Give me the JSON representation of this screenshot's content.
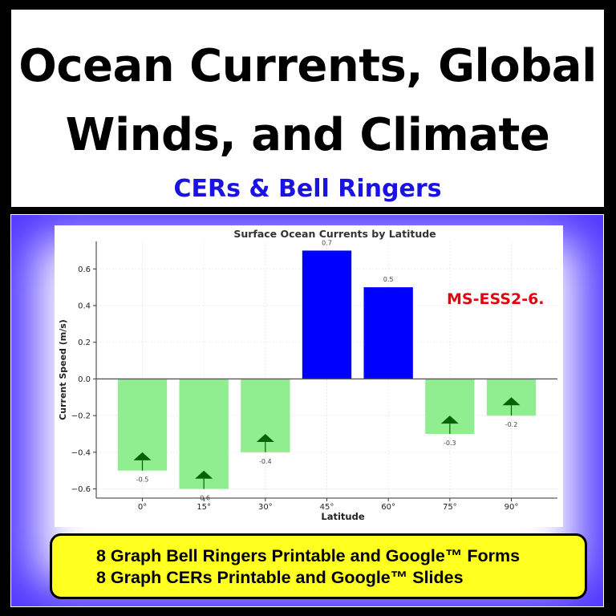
{
  "header": {
    "title_line1": "Ocean Currents, Global",
    "title_line2": "Winds, and Climate",
    "subtitle": "CERs & Bell Ringers"
  },
  "standard_label": "MS-ESS2-6.",
  "banner": {
    "line1": "8 Graph Bell Ringers Printable and Google™ Forms",
    "line2": "8 Graph CERs Printable and Google™ Slides"
  },
  "colors": {
    "positive_bar": "#0000ff",
    "negative_bar": "#90ee90",
    "arrow": "#006400",
    "subtitle": "#1a12e0",
    "standard": "#e0060e",
    "banner_bg": "#ffff20"
  },
  "chart_data": {
    "type": "bar",
    "title": "Surface Ocean Currents by Latitude",
    "xlabel": "Latitude",
    "ylabel": "Current Speed (m/s)",
    "categories": [
      "0°",
      "15°",
      "30°",
      "45°",
      "60°",
      "75°",
      "90°"
    ],
    "values": [
      -0.5,
      -0.6,
      -0.4,
      0.7,
      0.5,
      -0.3,
      -0.2
    ],
    "data_labels": [
      "-0.5",
      "-0.6",
      "-0.4",
      "0.7",
      "0.5",
      "-0.3",
      "-0.2"
    ],
    "ylim": [
      -0.65,
      0.75
    ],
    "yticks": [
      -0.6,
      -0.4,
      -0.2,
      0.0,
      0.2,
      0.4,
      0.6
    ],
    "ytick_labels": [
      "−0.6",
      "−0.4",
      "−0.2",
      "0.0",
      "0.2",
      "0.4",
      "0.6"
    ],
    "grid": true,
    "arrow_markers": "upward arrows on negative bars"
  }
}
